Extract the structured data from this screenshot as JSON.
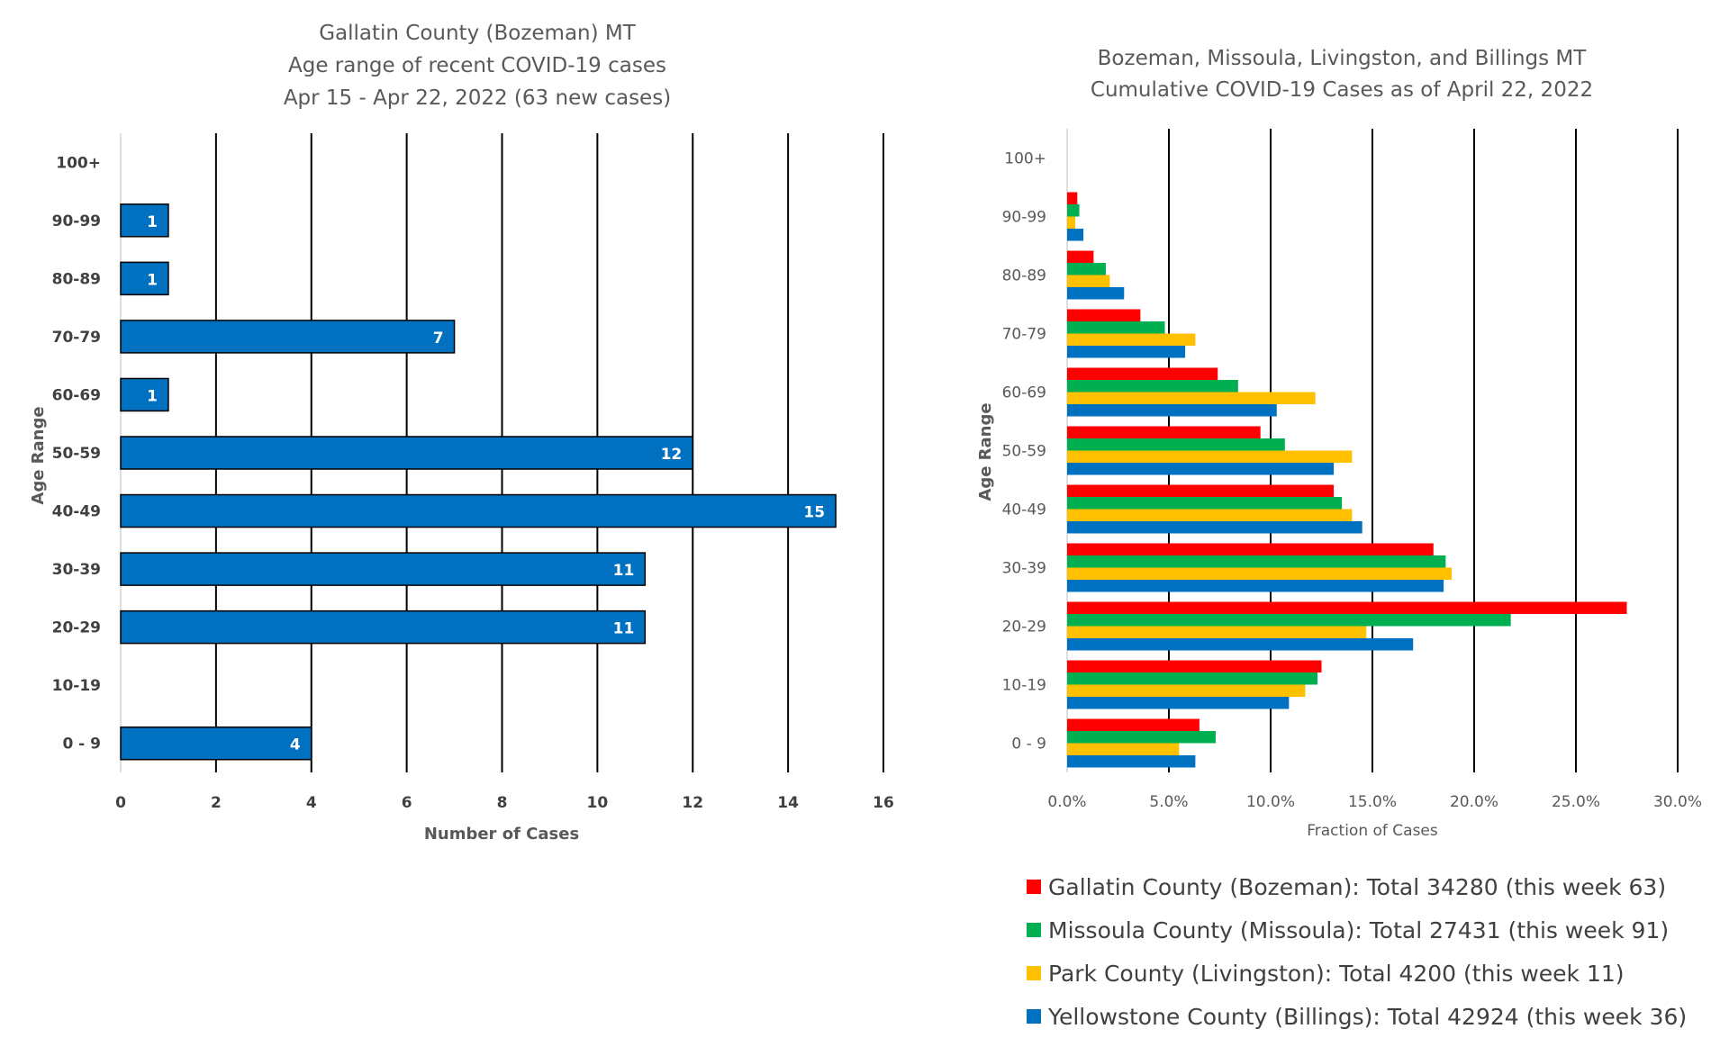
{
  "chart_data": [
    {
      "type": "bar",
      "orientation": "horizontal",
      "title_lines": [
        "Gallatin County (Bozeman) MT",
        "Age range of recent COVID-19 cases",
        "Apr 15 - Apr 22, 2022 (63 new cases)"
      ],
      "categories": [
        "0 - 9",
        "10-19",
        "20-29",
        "30-39",
        "40-49",
        "50-59",
        "60-69",
        "70-79",
        "80-89",
        "90-99",
        "100+"
      ],
      "values": [
        4,
        0,
        11,
        11,
        15,
        12,
        1,
        7,
        1,
        1,
        0
      ],
      "data_labels": [
        "4",
        "",
        "11",
        "11",
        "15",
        "12",
        "1",
        "7",
        "1",
        "1",
        ""
      ],
      "xlabel": "Number of Cases",
      "ylabel": "Age Range",
      "xlim": [
        0,
        16
      ],
      "x_ticks": [
        "0",
        "2",
        "4",
        "6",
        "8",
        "10",
        "12",
        "14",
        "16"
      ],
      "grid": "vertical",
      "bar_color": "#0070C0"
    },
    {
      "type": "bar",
      "orientation": "horizontal",
      "title_lines": [
        "Bozeman, Missoula, Livingston, and Billings MT",
        "Cumulative COVID-19 Cases as of April 22, 2022"
      ],
      "categories": [
        "0 - 9",
        "10-19",
        "20-29",
        "30-39",
        "40-49",
        "50-59",
        "60-69",
        "70-79",
        "80-89",
        "90-99",
        "100+"
      ],
      "series": [
        {
          "name": "Gallatin County (Bozeman): Total 34280 (this week 63)",
          "color": "#FF0000",
          "values": [
            6.5,
            12.5,
            27.5,
            18.0,
            13.1,
            9.5,
            7.4,
            3.6,
            1.3,
            0.5,
            0.0
          ]
        },
        {
          "name": "Missoula County (Missoula): Total 27431 (this week 91)",
          "color": "#00B050",
          "values": [
            7.3,
            12.3,
            21.8,
            18.6,
            13.5,
            10.7,
            8.4,
            4.8,
            1.9,
            0.6,
            0.0
          ]
        },
        {
          "name": "Park County (Livingston): Total 4200 (this week 11)",
          "color": "#FFC000",
          "values": [
            5.5,
            11.7,
            14.7,
            18.9,
            14.0,
            14.0,
            12.2,
            6.3,
            2.1,
            0.4,
            0.0
          ]
        },
        {
          "name": "Yellowstone County (Billings): Total 42924 (this week 36)",
          "color": "#0070C0",
          "values": [
            6.3,
            10.9,
            17.0,
            18.5,
            14.5,
            13.1,
            10.3,
            5.8,
            2.8,
            0.8,
            0.0
          ]
        }
      ],
      "xlabel": "Fraction of Cases",
      "ylabel": "Age Range",
      "xlim": [
        0,
        30
      ],
      "x_ticks": [
        "0.0%",
        "5.0%",
        "10.0%",
        "15.0%",
        "20.0%",
        "25.0%",
        "30.0%"
      ],
      "grid": "vertical",
      "legend_position": "bottom"
    }
  ]
}
